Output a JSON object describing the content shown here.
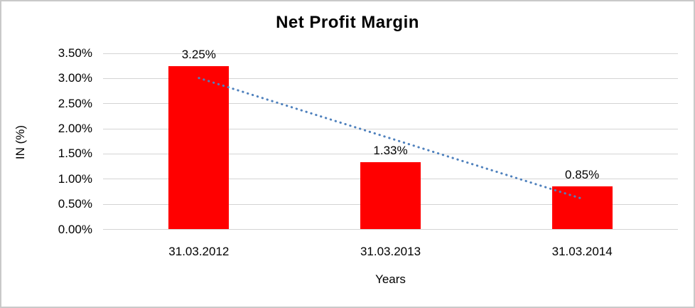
{
  "chart_data": {
    "type": "bar",
    "title": "Net Profit Margin",
    "categories": [
      "31.03.2012",
      "31.03.2013",
      "31.03.2014"
    ],
    "values": [
      3.25,
      1.33,
      0.85
    ],
    "data_labels": [
      "3.25%",
      "1.33%",
      "0.85%"
    ],
    "xlabel": "Years",
    "ylabel": "IN (%)",
    "ylim": [
      0,
      3.5
    ],
    "y_ticks": [
      "3.50%",
      "3.00%",
      "2.50%",
      "2.00%",
      "1.50%",
      "1.00%",
      "0.50%",
      "0.00%"
    ],
    "y_tick_values": [
      3.5,
      3.0,
      2.5,
      2.0,
      1.5,
      1.0,
      0.5,
      0.0
    ],
    "grid": true,
    "legend": "none",
    "trendline": {
      "kind": "linear",
      "style": "dotted",
      "start_value": 3.01,
      "end_value": 0.61
    },
    "colors": {
      "bar": "#FF0000",
      "trendline": "#4F81BD",
      "gridline": "#D4D4D4",
      "text": "#000000",
      "frame": "#C9C9C9",
      "background": "#FFFFFF"
    }
  }
}
